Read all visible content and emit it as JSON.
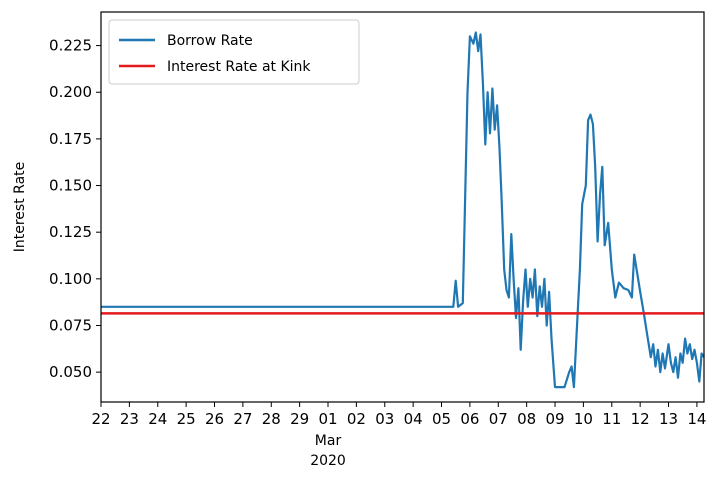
{
  "chart_data": {
    "type": "line",
    "title": "",
    "xlabel": "",
    "ylabel": "Interest Rate",
    "ylim": [
      0.034,
      0.243
    ],
    "xlim": [
      "2020-02-22",
      "2020-03-14T06:00"
    ],
    "x_tick_labels": [
      "22",
      "23",
      "24",
      "25",
      "26",
      "27",
      "28",
      "29",
      "01",
      "02",
      "03",
      "04",
      "05",
      "06",
      "07",
      "08",
      "09",
      "10",
      "11",
      "12",
      "13",
      "14"
    ],
    "x_tick_dates": [
      "2020-02-22",
      "2020-02-23",
      "2020-02-24",
      "2020-02-25",
      "2020-02-26",
      "2020-02-27",
      "2020-02-28",
      "2020-02-29",
      "2020-03-01",
      "2020-03-02",
      "2020-03-03",
      "2020-03-04",
      "2020-03-05",
      "2020-03-06",
      "2020-03-07",
      "2020-03-08",
      "2020-03-09",
      "2020-03-10",
      "2020-03-11",
      "2020-03-12",
      "2020-03-13",
      "2020-03-14"
    ],
    "x_secondary_label": [
      "Mar",
      "2020"
    ],
    "y_ticks": [
      "0.050",
      "0.075",
      "0.100",
      "0.125",
      "0.150",
      "0.175",
      "0.200",
      "0.225"
    ],
    "y_tick_values": [
      0.05,
      0.075,
      0.1,
      0.125,
      0.15,
      0.175,
      0.2,
      0.225
    ],
    "grid": false,
    "legend": {
      "position": "top-left"
    },
    "series": [
      {
        "name": "Borrow Rate",
        "color": "#1f77b4",
        "points": [
          [
            "2020-02-22T00:00",
            0.085
          ],
          [
            "2020-03-05T10:00",
            0.085
          ],
          [
            "2020-03-05T12:00",
            0.099
          ],
          [
            "2020-03-05T14:00",
            0.085
          ],
          [
            "2020-03-05T18:00",
            0.087
          ],
          [
            "2020-03-05T22:00",
            0.2
          ],
          [
            "2020-03-06T00:00",
            0.23
          ],
          [
            "2020-03-06T03:00",
            0.226
          ],
          [
            "2020-03-06T05:00",
            0.232
          ],
          [
            "2020-03-06T07:00",
            0.222
          ],
          [
            "2020-03-06T09:00",
            0.231
          ],
          [
            "2020-03-06T11:00",
            0.205
          ],
          [
            "2020-03-06T13:00",
            0.172
          ],
          [
            "2020-03-06T15:00",
            0.2
          ],
          [
            "2020-03-06T17:00",
            0.178
          ],
          [
            "2020-03-06T19:00",
            0.202
          ],
          [
            "2020-03-06T21:00",
            0.18
          ],
          [
            "2020-03-06T23:00",
            0.193
          ],
          [
            "2020-03-07T01:00",
            0.17
          ],
          [
            "2020-03-07T03:00",
            0.14
          ],
          [
            "2020-03-07T05:00",
            0.105
          ],
          [
            "2020-03-07T07:00",
            0.094
          ],
          [
            "2020-03-07T09:00",
            0.09
          ],
          [
            "2020-03-07T11:00",
            0.124
          ],
          [
            "2020-03-07T13:00",
            0.1
          ],
          [
            "2020-03-07T15:00",
            0.079
          ],
          [
            "2020-03-07T17:00",
            0.095
          ],
          [
            "2020-03-07T19:00",
            0.062
          ],
          [
            "2020-03-07T21:00",
            0.088
          ],
          [
            "2020-03-07T23:00",
            0.105
          ],
          [
            "2020-03-08T01:00",
            0.085
          ],
          [
            "2020-03-08T03:00",
            0.1
          ],
          [
            "2020-03-08T05:00",
            0.09
          ],
          [
            "2020-03-08T07:00",
            0.105
          ],
          [
            "2020-03-08T09:00",
            0.08
          ],
          [
            "2020-03-08T11:00",
            0.096
          ],
          [
            "2020-03-08T13:00",
            0.085
          ],
          [
            "2020-03-08T15:00",
            0.1
          ],
          [
            "2020-03-08T17:00",
            0.075
          ],
          [
            "2020-03-08T19:00",
            0.093
          ],
          [
            "2020-03-08T21:00",
            0.068
          ],
          [
            "2020-03-09T00:00",
            0.042
          ],
          [
            "2020-03-09T08:00",
            0.042
          ],
          [
            "2020-03-09T12:00",
            0.05
          ],
          [
            "2020-03-09T14:00",
            0.053
          ],
          [
            "2020-03-09T16:00",
            0.042
          ],
          [
            "2020-03-09T19:00",
            0.08
          ],
          [
            "2020-03-09T21:00",
            0.105
          ],
          [
            "2020-03-09T23:00",
            0.14
          ],
          [
            "2020-03-10T02:00",
            0.15
          ],
          [
            "2020-03-10T04:00",
            0.185
          ],
          [
            "2020-03-10T06:00",
            0.188
          ],
          [
            "2020-03-10T08:00",
            0.183
          ],
          [
            "2020-03-10T10:00",
            0.16
          ],
          [
            "2020-03-10T12:00",
            0.12
          ],
          [
            "2020-03-10T14:00",
            0.145
          ],
          [
            "2020-03-10T16:00",
            0.16
          ],
          [
            "2020-03-10T18:00",
            0.118
          ],
          [
            "2020-03-10T21:00",
            0.13
          ],
          [
            "2020-03-11T00:00",
            0.105
          ],
          [
            "2020-03-11T03:00",
            0.09
          ],
          [
            "2020-03-11T06:00",
            0.098
          ],
          [
            "2020-03-11T10:00",
            0.095
          ],
          [
            "2020-03-11T14:00",
            0.094
          ],
          [
            "2020-03-11T17:00",
            0.09
          ],
          [
            "2020-03-11T19:00",
            0.113
          ],
          [
            "2020-03-11T21:00",
            0.105
          ],
          [
            "2020-03-12T00:00",
            0.093
          ],
          [
            "2020-03-12T03:00",
            0.082
          ],
          [
            "2020-03-12T06:00",
            0.07
          ],
          [
            "2020-03-12T09:00",
            0.058
          ],
          [
            "2020-03-12T11:00",
            0.065
          ],
          [
            "2020-03-12T13:00",
            0.053
          ],
          [
            "2020-03-12T15:00",
            0.062
          ],
          [
            "2020-03-12T17:00",
            0.05
          ],
          [
            "2020-03-12T19:00",
            0.06
          ],
          [
            "2020-03-12T21:00",
            0.052
          ],
          [
            "2020-03-13T00:00",
            0.065
          ],
          [
            "2020-03-13T02:00",
            0.055
          ],
          [
            "2020-03-13T04:00",
            0.05
          ],
          [
            "2020-03-13T06:00",
            0.058
          ],
          [
            "2020-03-13T08:00",
            0.047
          ],
          [
            "2020-03-13T10:00",
            0.06
          ],
          [
            "2020-03-13T12:00",
            0.055
          ],
          [
            "2020-03-13T14:00",
            0.068
          ],
          [
            "2020-03-13T16:00",
            0.06
          ],
          [
            "2020-03-13T18:00",
            0.065
          ],
          [
            "2020-03-13T20:00",
            0.057
          ],
          [
            "2020-03-13T22:00",
            0.062
          ],
          [
            "2020-03-14T00:00",
            0.055
          ],
          [
            "2020-03-14T02:00",
            0.045
          ],
          [
            "2020-03-14T04:00",
            0.06
          ],
          [
            "2020-03-14T06:00",
            0.058
          ]
        ]
      },
      {
        "name": "Interest Rate at Kink",
        "color": "#e41a1c",
        "points": [
          [
            "2020-02-22T00:00",
            0.0815
          ],
          [
            "2020-03-14T06:00",
            0.0815
          ]
        ]
      }
    ]
  }
}
